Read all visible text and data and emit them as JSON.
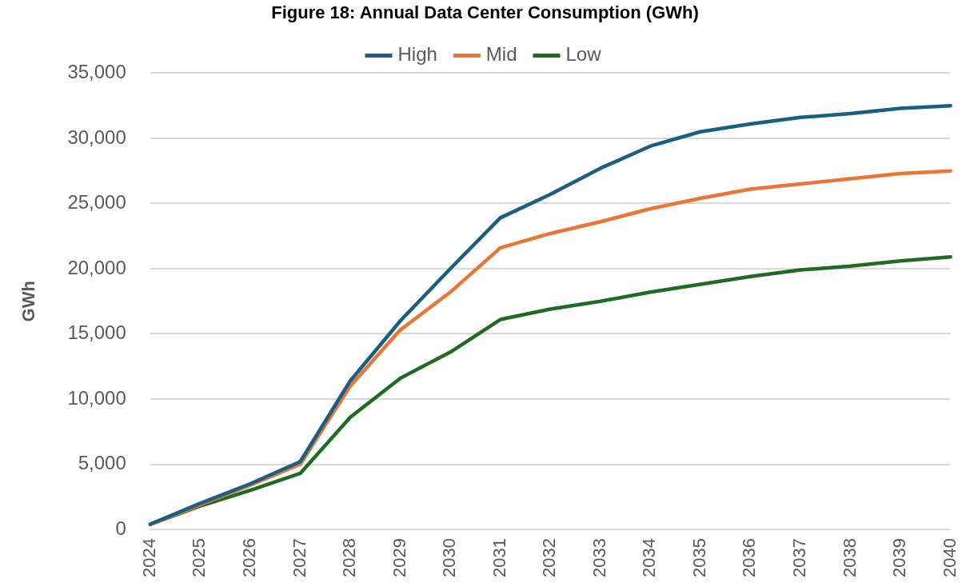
{
  "chart_data": {
    "type": "line",
    "title": "Figure 18: Annual Data Center Consumption (GWh)",
    "ylabel": "GWh",
    "categories": [
      "2024",
      "2025",
      "2026",
      "2027",
      "2028",
      "2029",
      "2030",
      "2031",
      "2032",
      "2033",
      "2034",
      "2035",
      "2036",
      "2037",
      "2038",
      "2039",
      "2040"
    ],
    "series": [
      {
        "name": "High",
        "color": "#1a5e82",
        "values": [
          400,
          2000,
          3500,
          5200,
          11400,
          16000,
          20000,
          23900,
          25700,
          27700,
          29400,
          30500,
          31100,
          31600,
          31900,
          32300,
          32500
        ]
      },
      {
        "name": "Mid",
        "color": "#ea7535",
        "values": [
          400,
          1900,
          3400,
          5000,
          11000,
          15300,
          18200,
          21600,
          22700,
          23600,
          24600,
          25400,
          26100,
          26500,
          26900,
          27300,
          27500
        ]
      },
      {
        "name": "Low",
        "color": "#1e6b22",
        "values": [
          400,
          1800,
          3000,
          4300,
          8600,
          11600,
          13600,
          16100,
          16900,
          17500,
          18200,
          18800,
          19400,
          19900,
          20200,
          20600,
          20900
        ]
      }
    ],
    "ylim": [
      0,
      35000
    ],
    "yticks": [
      0,
      {
        "value": 5000,
        "label": "5,000"
      },
      {
        "value": 10000,
        "label": "10,000"
      },
      {
        "value": 15000,
        "label": "15,000"
      },
      {
        "value": 20000,
        "label": "20,000"
      },
      {
        "value": 25000,
        "label": "25,000"
      },
      {
        "value": 30000,
        "label": "30,000"
      },
      {
        "value": 35000,
        "label": "35,000"
      }
    ],
    "grid": "y",
    "legend": "top",
    "marker": "none",
    "line_style": "solid"
  }
}
